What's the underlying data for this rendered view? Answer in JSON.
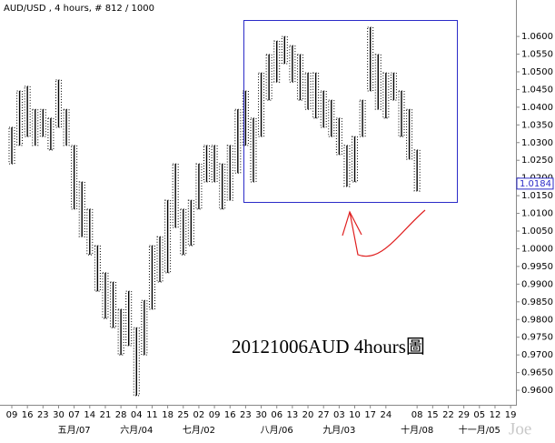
{
  "chart_data": {
    "type": "range_bar",
    "title": "AUD/USD , 4 hours, # 812 / 1000",
    "annotation": "20121006AUD 4hours圖",
    "watermark": "Joe",
    "categories": [
      "09",
      null,
      "16",
      null,
      "23",
      null,
      "30",
      null,
      "07",
      null,
      "14",
      null,
      "21",
      null,
      "28",
      null,
      "04",
      null,
      "11",
      null,
      "18",
      null,
      "25",
      null,
      "02",
      null,
      "09",
      null,
      "16",
      null,
      "23",
      null,
      "30",
      null,
      "06",
      null,
      "13",
      null,
      "20",
      null,
      "27",
      null,
      "03",
      null,
      "10",
      null,
      "17",
      null,
      "24",
      null,
      null,
      null,
      "08",
      null,
      "15",
      null,
      "22",
      null,
      "29",
      null,
      "05",
      null,
      "12",
      null,
      "19",
      null
    ],
    "months": [
      null,
      null,
      null,
      null,
      null,
      null,
      null,
      null,
      "五月/07",
      null,
      null,
      null,
      null,
      null,
      null,
      null,
      "六月/04",
      null,
      null,
      null,
      null,
      null,
      null,
      null,
      "七月/02",
      null,
      null,
      null,
      null,
      null,
      null,
      null,
      null,
      null,
      "八月/06",
      null,
      null,
      null,
      null,
      null,
      null,
      null,
      "九月/03",
      null,
      null,
      null,
      null,
      null,
      null,
      null,
      null,
      null,
      "十月/08",
      null,
      null,
      null,
      null,
      null,
      null,
      null,
      "十一月/05",
      null,
      null,
      null,
      null,
      null
    ],
    "series": [
      {
        "name": "high",
        "color": "#000000",
        "values": [
          1.0343,
          1.0446,
          1.0459,
          1.0394,
          1.0394,
          1.0369,
          1.0477,
          1.0394,
          1.0292,
          1.0189,
          1.0112,
          1.0009,
          0.9932,
          0.9906,
          0.9829,
          0.988,
          0.9777,
          0.9854,
          1.0009,
          1.0034,
          1.0137,
          1.024,
          1.0112,
          1.0137,
          1.024,
          1.0292,
          1.0292,
          1.024,
          1.0292,
          1.0394,
          1.0446,
          1.0369,
          1.0497,
          1.0549,
          1.0587,
          1.06,
          1.0574,
          1.0549,
          1.0497,
          1.0497,
          1.0446,
          1.042,
          1.0369,
          1.0292,
          1.0317,
          1.042,
          1.0626,
          1.0549,
          1.0497,
          1.0497,
          1.0446,
          1.0394,
          1.0279,
          null,
          null,
          null,
          null,
          null,
          null,
          null,
          null,
          null,
          null,
          null,
          null,
          null
        ]
      },
      {
        "name": "low",
        "color": "#000000",
        "values": [
          1.024,
          1.0292,
          1.0317,
          1.0292,
          1.0317,
          1.0279,
          1.0343,
          1.0292,
          1.0112,
          1.0034,
          0.9983,
          0.988,
          0.9803,
          0.9777,
          0.97,
          0.9726,
          0.9585,
          0.97,
          0.9829,
          0.9906,
          0.9932,
          1.006,
          0.9983,
          1.0009,
          1.0112,
          1.0189,
          1.0189,
          1.0112,
          1.0137,
          1.0214,
          1.0292,
          1.0189,
          1.0317,
          1.042,
          1.0471,
          1.0523,
          1.0471,
          1.042,
          1.0394,
          1.0369,
          1.0343,
          1.0317,
          1.0266,
          1.0176,
          1.0189,
          1.0317,
          1.0446,
          1.0394,
          1.0369,
          1.042,
          1.0317,
          1.0253,
          1.0163,
          null,
          null,
          null,
          null,
          null,
          null,
          null,
          null,
          null,
          null,
          null,
          null,
          null
        ]
      }
    ],
    "last_price": 1.0184,
    "ylim": [
      0.9559,
      1.0703
    ],
    "yticks": [
      {
        "value": 0.96,
        "label": "0.9600"
      },
      {
        "value": 0.965,
        "label": "0.9650"
      },
      {
        "value": 0.97,
        "label": "0.9700"
      },
      {
        "value": 0.975,
        "label": "0.9750"
      },
      {
        "value": 0.98,
        "label": "0.9800"
      },
      {
        "value": 0.985,
        "label": "0.9850"
      },
      {
        "value": 0.99,
        "label": "0.9900"
      },
      {
        "value": 0.995,
        "label": "0.9950"
      },
      {
        "value": 1.0,
        "label": "1.0000"
      },
      {
        "value": 1.005,
        "label": "1.0050"
      },
      {
        "value": 1.01,
        "label": "1.0100"
      },
      {
        "value": 1.015,
        "label": "1.0150"
      },
      {
        "value": 1.02,
        "label": "1.0200"
      },
      {
        "value": 1.025,
        "label": "1.0250"
      },
      {
        "value": 1.03,
        "label": "1.0300"
      },
      {
        "value": 1.035,
        "label": "1.0350"
      },
      {
        "value": 1.04,
        "label": "1.0400"
      },
      {
        "value": 1.045,
        "label": "1.0450"
      },
      {
        "value": 1.05,
        "label": "1.0500"
      },
      {
        "value": 1.055,
        "label": "1.0550"
      },
      {
        "value": 1.06,
        "label": "1.0600"
      }
    ]
  }
}
